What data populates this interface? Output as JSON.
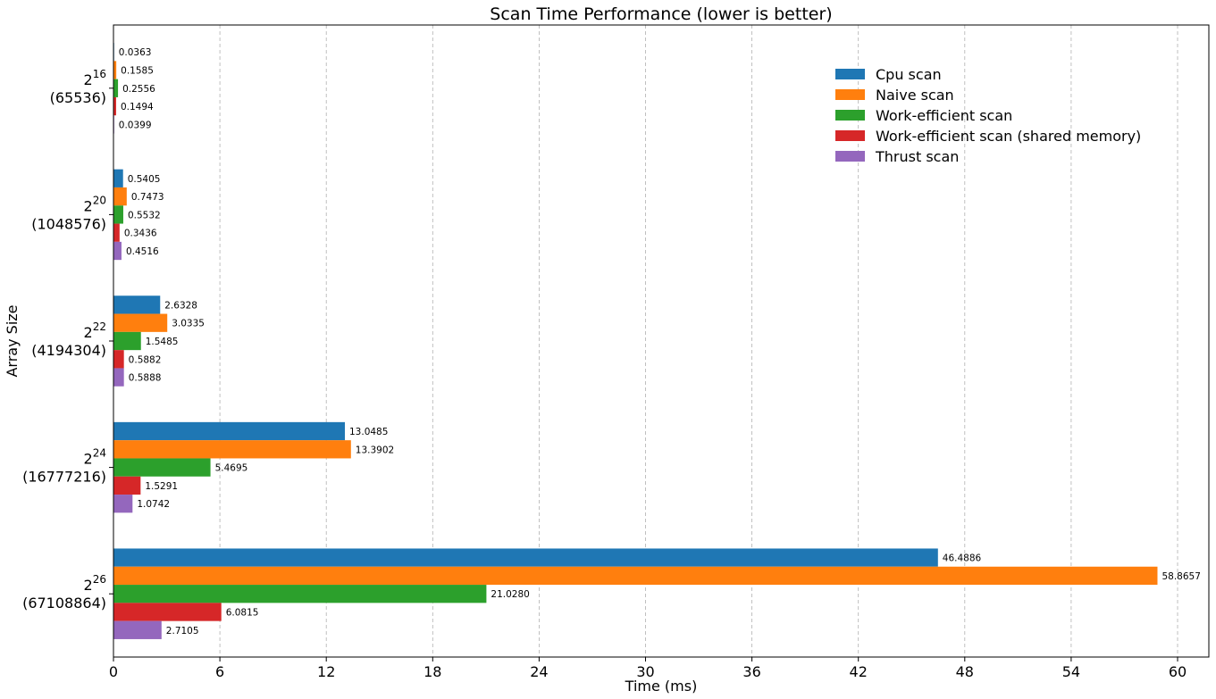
{
  "chart_data": {
    "type": "bar",
    "orientation": "horizontal",
    "title": "Scan Time Performance (lower is better)",
    "xlabel": "Time (ms)",
    "ylabel": "Array Size",
    "xlim": [
      0,
      61.8
    ],
    "xticks": [
      0,
      6,
      12,
      18,
      24,
      30,
      36,
      42,
      48,
      54,
      60
    ],
    "grid": "vertical dashed",
    "legend_position": "top-right",
    "categories": [
      {
        "base": "2",
        "exp": "16",
        "value": "(65536)"
      },
      {
        "base": "2",
        "exp": "20",
        "value": "(1048576)"
      },
      {
        "base": "2",
        "exp": "22",
        "value": "(4194304)"
      },
      {
        "base": "2",
        "exp": "24",
        "value": "(16777216)"
      },
      {
        "base": "2",
        "exp": "26",
        "value": "(67108864)"
      }
    ],
    "series": [
      {
        "name": "Cpu scan",
        "color": "#1f77b4",
        "values": [
          0.0363,
          0.5405,
          2.6328,
          13.0485,
          46.4886
        ],
        "labels": [
          "0.0363",
          "0.5405",
          "2.6328",
          "13.0485",
          "46.4886"
        ]
      },
      {
        "name": "Naive scan",
        "color": "#ff7f0e",
        "values": [
          0.1585,
          0.7473,
          3.0335,
          13.3902,
          58.8657
        ],
        "labels": [
          "0.1585",
          "0.7473",
          "3.0335",
          "13.3902",
          "58.8657"
        ]
      },
      {
        "name": "Work-efficient scan",
        "color": "#2ca02c",
        "values": [
          0.2556,
          0.5532,
          1.5485,
          5.4695,
          21.028
        ],
        "labels": [
          "0.2556",
          "0.5532",
          "1.5485",
          "5.4695",
          "21.0280"
        ]
      },
      {
        "name": "Work-efficient scan (shared memory)",
        "color": "#d62728",
        "values": [
          0.1494,
          0.3436,
          0.5882,
          1.5291,
          6.0815
        ],
        "labels": [
          "0.1494",
          "0.3436",
          "0.5882",
          "1.5291",
          "6.0815"
        ]
      },
      {
        "name": "Thrust scan",
        "color": "#9467bd",
        "values": [
          0.0399,
          0.4516,
          0.5888,
          1.0742,
          2.7105
        ],
        "labels": [
          "0.0399",
          "0.4516",
          "0.5888",
          "1.0742",
          "2.7105"
        ]
      }
    ]
  }
}
